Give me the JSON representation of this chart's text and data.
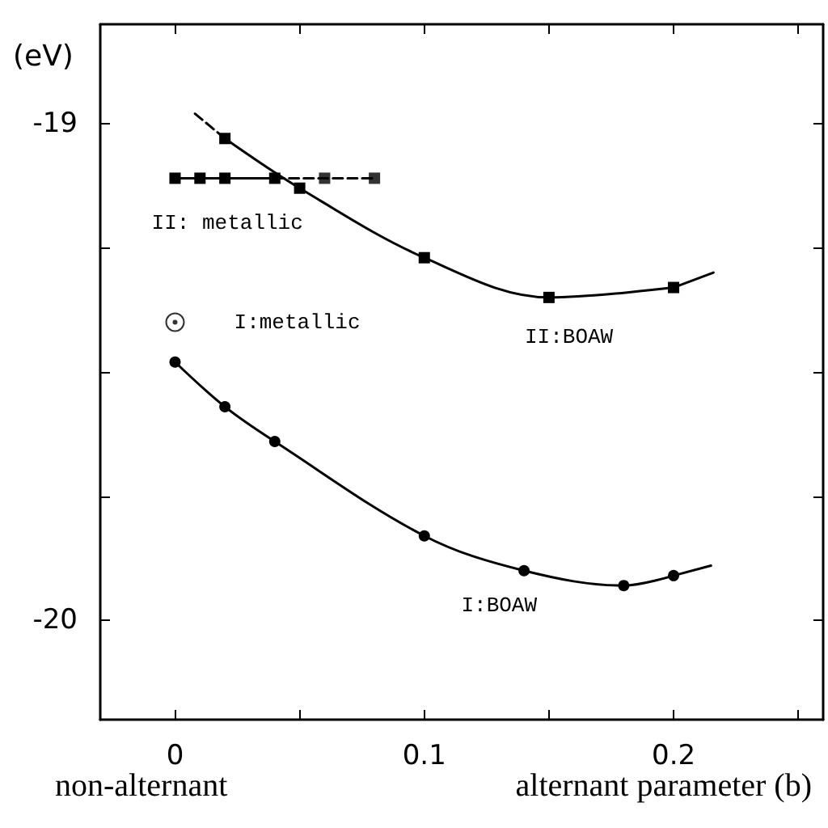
{
  "chart_data": {
    "type": "line",
    "xlabel": "alternant parameter (b)",
    "ylabel": "(eV)",
    "xlim": [
      -0.03,
      0.26
    ],
    "ylim": [
      -20.2,
      -18.8
    ],
    "xticks": [
      0,
      {
        "value": 0.05,
        "label": null
      },
      0.1,
      {
        "value": 0.15,
        "label": null
      },
      0.2,
      {
        "value": 0.25,
        "label": null
      }
    ],
    "yticks": [
      -20,
      {
        "value": -19.75,
        "label": null
      },
      {
        "value": -19.5,
        "label": null
      },
      {
        "value": -19.25,
        "label": null
      },
      -19
    ],
    "grid": false,
    "series": [
      {
        "color": "#000000",
        "marker": "square",
        "line_style": "solid",
        "x": [
          0,
          0.01,
          0.02,
          0.04
        ],
        "values": [
          -19.11,
          -19.11,
          -19.11,
          -19.11
        ]
      },
      {
        "color": "#000000",
        "line_style": "dashed",
        "x": [
          0.04,
          0.06,
          0.08
        ],
        "values": [
          -19.11,
          -19.11,
          -19.11
        ]
      },
      {
        "type": "scatter",
        "color": "#000000",
        "marker": "square",
        "x": [
          0.06,
          0.08
        ],
        "values": [
          -19.11,
          -19.11
        ]
      },
      {
        "color": "#000000",
        "line_style": "dashed",
        "x": [
          0.008,
          0.02
        ],
        "values": [
          -18.98,
          -19.03
        ]
      },
      {
        "color": "#000000",
        "marker": "square",
        "line_style": "solid",
        "x": [
          0.02,
          0.05,
          0.1,
          0.15,
          0.2
        ],
        "values": [
          -19.03,
          -19.13,
          -19.27,
          -19.35,
          -19.33
        ]
      },
      {
        "color": "#000000",
        "line_style": "solid",
        "x": [
          0.2,
          0.216
        ],
        "values": [
          -19.33,
          -19.3
        ]
      },
      {
        "type": "scatter",
        "color": "#000000",
        "marker": "circle",
        "x": [
          0
        ],
        "values": [
          -19.4
        ]
      },
      {
        "color": "#000000",
        "marker": "circle",
        "line_style": "solid",
        "x": [
          0,
          0.02,
          0.04,
          0.1,
          0.14,
          0.18,
          0.2
        ],
        "values": [
          -19.48,
          -19.57,
          -19.64,
          -19.83,
          -19.9,
          -19.93,
          -19.91
        ]
      },
      {
        "color": "#000000",
        "line_style": "solid",
        "x": [
          0.2,
          0.215
        ],
        "values": [
          -19.91,
          -19.89
        ]
      }
    ],
    "annotations": [
      "II: metallic",
      "I:metallic",
      "II:BOAW",
      "I:BOAW",
      "non-alternant"
    ]
  }
}
